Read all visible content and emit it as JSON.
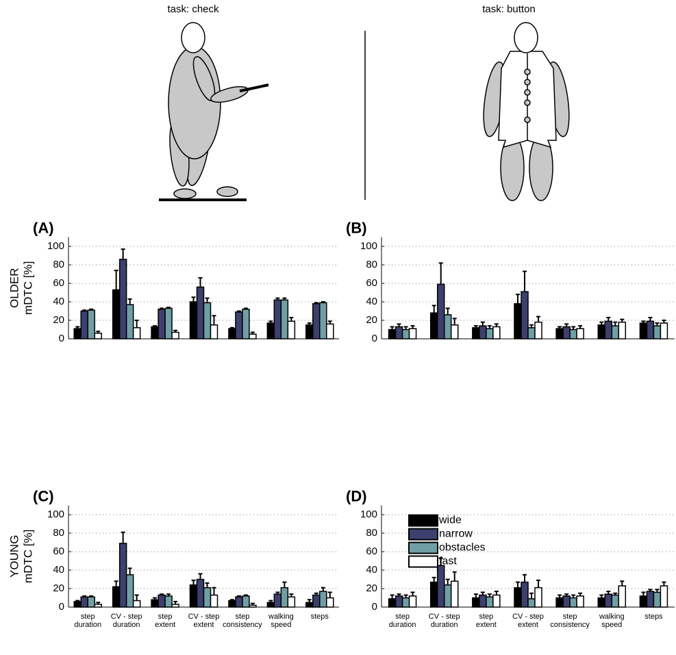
{
  "figure": {
    "left_task": "task: check",
    "right_task": "task: button"
  },
  "chart_data": [
    {
      "type": "bar",
      "panel": "(A)",
      "ylabel": [
        "OLDER",
        "mDTC [%]"
      ],
      "ylim": [
        0,
        110
      ],
      "yticks": [
        0,
        20,
        40,
        60,
        80,
        100
      ],
      "grid": true,
      "series": [
        {
          "color": "#000000",
          "values": [
            11,
            53,
            13,
            40,
            11,
            17,
            15
          ],
          "errors": [
            2,
            21,
            1,
            5,
            1,
            2,
            2
          ]
        },
        {
          "color": "#3d3f6e",
          "values": [
            30,
            86,
            32,
            56,
            29,
            42,
            38
          ],
          "errors": [
            1,
            11,
            1,
            10,
            1,
            2,
            1
          ]
        },
        {
          "color": "#6f9fa4",
          "values": [
            31,
            37,
            33,
            39,
            32,
            42,
            39
          ],
          "errors": [
            1,
            6,
            1,
            5,
            1,
            2,
            1
          ]
        },
        {
          "color": "#ffffff",
          "values": [
            6,
            12,
            7,
            15,
            5,
            19,
            16
          ],
          "errors": [
            2,
            8,
            2,
            10,
            2,
            4,
            3
          ]
        }
      ]
    },
    {
      "type": "bar",
      "panel": "(B)",
      "ylim": [
        0,
        110
      ],
      "yticks": [
        0,
        20,
        40,
        60,
        80,
        100
      ],
      "grid": true,
      "series": [
        {
          "color": "#000000",
          "values": [
            10,
            28,
            12,
            38,
            11,
            15,
            17
          ],
          "errors": [
            3,
            8,
            2,
            10,
            2,
            3,
            2
          ]
        },
        {
          "color": "#3d3f6e",
          "values": [
            13,
            59,
            14,
            51,
            13,
            19,
            19
          ],
          "errors": [
            3,
            23,
            4,
            22,
            3,
            4,
            4
          ]
        },
        {
          "color": "#6f9fa4",
          "values": [
            10,
            26,
            11,
            12,
            10,
            14,
            14
          ],
          "errors": [
            3,
            7,
            3,
            3,
            3,
            4,
            3
          ]
        },
        {
          "color": "#ffffff",
          "values": [
            11,
            15,
            13,
            18,
            11,
            18,
            17
          ],
          "errors": [
            3,
            7,
            3,
            6,
            3,
            3,
            3
          ]
        }
      ]
    },
    {
      "type": "bar",
      "panel": "(C)",
      "ylabel": [
        "YOUNG",
        "mDTC [%]"
      ],
      "ylim": [
        0,
        110
      ],
      "yticks": [
        0,
        20,
        40,
        60,
        80,
        100
      ],
      "grid": true,
      "categories": [
        [
          "step",
          "duration"
        ],
        [
          "CV - step",
          "duration"
        ],
        [
          "step",
          "extent"
        ],
        [
          "CV - step",
          "extent"
        ],
        [
          "step",
          "consistency"
        ],
        [
          "walking",
          "speed"
        ],
        [
          "steps"
        ]
      ],
      "series": [
        {
          "color": "#000000",
          "values": [
            6,
            22,
            8,
            24,
            7,
            5,
            5
          ],
          "errors": [
            1,
            6,
            2,
            5,
            1,
            2,
            3
          ]
        },
        {
          "color": "#3d3f6e",
          "values": [
            11,
            69,
            13,
            30,
            11,
            14,
            13
          ],
          "errors": [
            1,
            12,
            1,
            6,
            1,
            2,
            2
          ]
        },
        {
          "color": "#6f9fa4",
          "values": [
            11,
            35,
            12,
            21,
            12,
            21,
            17
          ],
          "errors": [
            1,
            7,
            2,
            5,
            1,
            6,
            4
          ]
        },
        {
          "color": "#ffffff",
          "values": [
            3,
            7,
            3,
            13,
            2,
            11,
            10
          ],
          "errors": [
            2,
            6,
            3,
            8,
            2,
            3,
            6
          ]
        }
      ]
    },
    {
      "type": "bar",
      "panel": "(D)",
      "ylim": [
        0,
        110
      ],
      "yticks": [
        0,
        20,
        40,
        60,
        80,
        100
      ],
      "grid": true,
      "legend": "upper left",
      "categories": [
        [
          "step",
          "duration"
        ],
        [
          "CV - step",
          "duration"
        ],
        [
          "step",
          "extent"
        ],
        [
          "CV - step",
          "extent"
        ],
        [
          "step",
          "consistency"
        ],
        [
          "walking",
          "speed"
        ],
        [
          "steps"
        ]
      ],
      "series": [
        {
          "name": "wide",
          "color": "#000000",
          "values": [
            9,
            27,
            10,
            21,
            10,
            10,
            12
          ],
          "errors": [
            4,
            5,
            4,
            6,
            3,
            3,
            4
          ]
        },
        {
          "name": "narrow",
          "color": "#3d3f6e",
          "values": [
            12,
            45,
            13,
            27,
            12,
            14,
            17
          ],
          "errors": [
            2,
            8,
            3,
            8,
            2,
            3,
            2
          ]
        },
        {
          "name": "obstacles",
          "color": "#6f9fa4",
          "values": [
            10,
            24,
            11,
            9,
            10,
            13,
            16
          ],
          "errors": [
            3,
            6,
            3,
            6,
            3,
            2,
            3
          ]
        },
        {
          "name": "fast",
          "color": "#ffffff",
          "values": [
            12,
            28,
            13,
            21,
            12,
            23,
            23
          ],
          "errors": [
            4,
            10,
            4,
            8,
            3,
            5,
            4
          ]
        }
      ]
    }
  ]
}
